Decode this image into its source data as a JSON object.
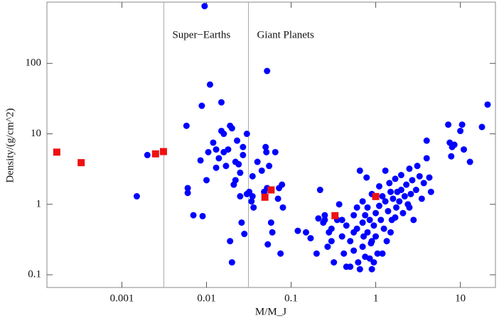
{
  "chart_data": {
    "type": "scatter",
    "x_label": "M/M_J",
    "y_label": "Density/(g/cm^2)",
    "xlog": true,
    "ylog": true,
    "xlim": [
      0.00013,
      26
    ],
    "ylim": [
      0.066,
      740
    ],
    "xticks": [
      0.001,
      0.01,
      0.1,
      1,
      10
    ],
    "yticks": [
      0.1,
      1,
      10,
      100
    ],
    "vlines": [
      0.00313,
      0.0313
    ],
    "annotations": [
      "Super−Earths",
      "Giant Planets"
    ],
    "series": [
      {
        "color": "#0000ff",
        "marker": "circle",
        "x": [
          0.0095,
          0.0015,
          0.002,
          0.0058,
          0.006,
          0.006,
          0.007,
          0.0085,
          0.009,
          0.0088,
          0.01,
          0.0105,
          0.011,
          0.012,
          0.013,
          0.013,
          0.014,
          0.015,
          0.016,
          0.016,
          0.015,
          0.017,
          0.018,
          0.019,
          0.019,
          0.02,
          0.02,
          0.021,
          0.022,
          0.022,
          0.023,
          0.024,
          0.025,
          0.025,
          0.026,
          0.027,
          0.027,
          0.028,
          0.03,
          0.03,
          0.032,
          0.034,
          0.035,
          0.035,
          0.036,
          0.04,
          0.045,
          0.048,
          0.05,
          0.051,
          0.052,
          0.052,
          0.053,
          0.055,
          0.058,
          0.06,
          0.065,
          0.07,
          0.072,
          0.075,
          0.08,
          0.078,
          0.12,
          0.15,
          0.17,
          0.2,
          0.21,
          0.22,
          0.24,
          0.25,
          0.27,
          0.3,
          0.32,
          0.35,
          0.37,
          0.4,
          0.42,
          0.45,
          0.45,
          0.5,
          0.5,
          0.55,
          0.55,
          0.6,
          0.6,
          0.62,
          0.65,
          0.7,
          0.7,
          0.72,
          0.75,
          0.75,
          0.78,
          0.8,
          0.8,
          0.85,
          0.88,
          0.9,
          0.9,
          0.95,
          1,
          1,
          1.05,
          1.1,
          1.1,
          1.15,
          1.2,
          1.25,
          1.3,
          1.3,
          1.35,
          1.4,
          1.45,
          1.5,
          1.55,
          1.6,
          1.7,
          1.75,
          1.8,
          1.9,
          2,
          2,
          2.1,
          2.2,
          2.3,
          2.4,
          2.5,
          2.6,
          2.7,
          2.8,
          3,
          3.1,
          3.3,
          3.5,
          3.7,
          4,
          4,
          4.3,
          4.5,
          7.2,
          7.5,
          7.8,
          8,
          8.5,
          10,
          10.5,
          11,
          13,
          18,
          21,
          2.5,
          1.7,
          0.9,
          0.65,
          0.55,
          0.85,
          1.2,
          0.3,
          0.28,
          0.4,
          0.25,
          0.7,
          0.95,
          1.5
        ],
        "values": [
          650,
          1.3,
          5,
          13,
          1.7,
          1.45,
          0.7,
          4.2,
          0.68,
          25,
          2.2,
          5.5,
          50,
          7.5,
          6,
          3.3,
          4.5,
          28,
          5.5,
          10,
          11,
          3.5,
          6,
          13,
          0.3,
          0.15,
          12,
          1.9,
          4,
          2.2,
          8,
          3.7,
          2.8,
          1.3,
          0.55,
          6.5,
          5,
          0.38,
          10,
          1.4,
          1.5,
          1.1,
          2.5,
          1.3,
          0.9,
          4,
          3,
          1.5,
          6.5,
          5.5,
          78,
          1.7,
          0.27,
          3.5,
          0.55,
          0.4,
          5.5,
          1.2,
          1.7,
          0.2,
          0.9,
          1.9,
          0.42,
          0.4,
          0.33,
          0.2,
          0.63,
          1.6,
          0.55,
          0.6,
          0.25,
          0.45,
          0.15,
          0.6,
          1,
          0.35,
          0.2,
          0.13,
          0.5,
          0.3,
          0.13,
          0.7,
          0.22,
          0.45,
          0.9,
          0.15,
          3,
          0.25,
          0.55,
          0.35,
          0.18,
          0.7,
          2.4,
          0.9,
          0.4,
          0.6,
          0.28,
          0.12,
          1.4,
          0.5,
          0.75,
          0.35,
          0.2,
          1.8,
          0.95,
          0.6,
          1.3,
          0.45,
          3,
          1.1,
          0.3,
          0.8,
          2,
          1.5,
          0.6,
          1.2,
          2.3,
          0.9,
          1.5,
          1.1,
          2.6,
          1.6,
          0.75,
          1.3,
          1.9,
          1,
          3.2,
          1.4,
          2.2,
          0.6,
          1.6,
          3.5,
          2.5,
          1.2,
          2,
          8,
          4.5,
          2.4,
          1.5,
          13.5,
          7.5,
          4.8,
          6.5,
          7,
          11,
          13.5,
          6,
          4,
          12.5,
          26,
          0.9,
          0.65,
          0.3,
          0.12,
          0.4,
          0.17,
          0.2,
          0.3,
          0.4,
          0.6,
          0.7,
          1.1,
          0.15,
          0.4
        ]
      },
      {
        "color": "#ee1111",
        "marker": "square",
        "x": [
          0.00017,
          0.00033,
          0.0025,
          0.0031,
          0.049,
          0.058,
          0.33,
          1.0
        ],
        "values": [
          5.5,
          3.9,
          5.2,
          5.6,
          1.26,
          1.6,
          0.69,
          1.29
        ]
      }
    ]
  }
}
